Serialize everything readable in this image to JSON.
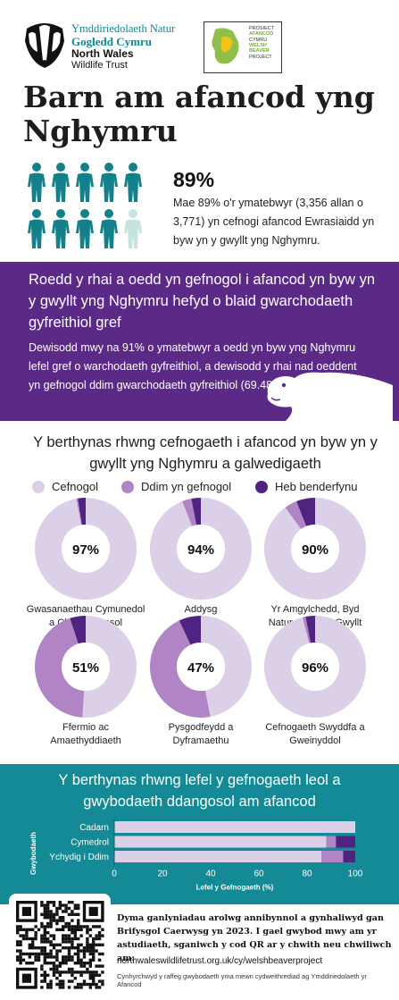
{
  "header": {
    "org_line1": "Ymddiriedolaeth Natur",
    "org_line2": "Gogledd Cymru",
    "org_line3": "North Wales",
    "org_line4": "Wildlife Trust",
    "project_line1": "PROSIECT",
    "project_line2": "AFANCOD",
    "project_line3": "CYMRU",
    "project_line4": "WELSH",
    "project_line5": "BEAVER",
    "project_line6": "PROJECT"
  },
  "title": "Barn am afancod yng Nghymru",
  "support": {
    "percent_label": "89%",
    "description": "Mae 89% o'r ymatebwyr (3,356 allan o 3,771) yn cefnogi afancod Ewrasiaidd yn byw yn y gwyllt yng Nghymru.",
    "icons_total": 10,
    "icons_filled": 9,
    "colors": {
      "filled": "#13808a",
      "faded": "#c5e3df"
    }
  },
  "purple_section": {
    "heading": "Roedd y rhai a oedd yn gefnogol i afancod yn byw yn y gwyllt yng Nghymru hefyd o blaid gwarchodaeth gyfreithiol gref",
    "body": "Dewisodd mwy na 91% o ymatebwyr a oedd yn byw yng Nghymru lefel gref o warchodaeth gyfreithiol, a dewisodd y rhai nad oeddent yn gefnogol ddim gwarchodaeth gyfreithiol (69.48%).",
    "bg_color": "#5a2a86"
  },
  "occupation_section": {
    "heading": "Y berthynas rhwng cefnogaeth i afancod yn byw yn y gwyllt yng Nghymru a galwedigaeth",
    "legend": [
      {
        "label": "Cefnogol",
        "color": "#dcd0e8"
      },
      {
        "label": "Ddim yn gefnogol",
        "color": "#b184c6"
      },
      {
        "label": "Heb benderfynu",
        "color": "#4f2380"
      }
    ]
  },
  "bar_section": {
    "heading": "Y berthynas rhwng lefel y gefnogaeth leol a gwybodaeth ddangosol am afancod",
    "bg_color": "#138a95"
  },
  "footer": {
    "main_text": "Dyma ganlyniadau arolwg annibynnol a gynhaliwyd gan Brifysgol Caerwysg yn 2023. I gael gwybod mwy am yr astudiaeth, sganiwch y cod QR ar y chwith neu chwiliwch am:",
    "url": "northwaleswildlifetrust.org.uk/cy/welshbeaverproject",
    "small_text": "Cynhyrchwyd y raffeg gwybodaeth yma mewn cydweithrediad ag Ymddiriedolaeth yr Afancod"
  },
  "chart_data": [
    {
      "type": "pie",
      "subtype": "donut-grid",
      "series_labels": [
        "Cefnogol",
        "Ddim yn gefnogol",
        "Heb benderfynu"
      ],
      "colors": [
        "#dcd0e8",
        "#b184c6",
        "#4f2380"
      ],
      "items": [
        {
          "label_line1": "Gwasanaethau Cymunedol",
          "label_line2": "a Chymdeithasol",
          "center": "97%",
          "values": [
            97,
            0.5,
            2.5
          ]
        },
        {
          "label_line1": "Addysg",
          "label_line2": "",
          "center": "94%",
          "values": [
            94,
            3,
            3
          ]
        },
        {
          "label_line1": "Yr Amgylchedd, Byd",
          "label_line2": "Natur a Bywyd Gwyllt",
          "center": "90%",
          "values": [
            90,
            4,
            6
          ]
        },
        {
          "label_line1": "Ffermio ac",
          "label_line2": "Amaethyddiaeth",
          "center": "51%",
          "values": [
            51,
            44,
            5
          ]
        },
        {
          "label_line1": "Pysgodfeydd a",
          "label_line2": "Dyframaethu",
          "center": "47%",
          "values": [
            47,
            46,
            7
          ]
        },
        {
          "label_line1": "Cefnogaeth Swyddfa a",
          "label_line2": "Gweinyddol",
          "center": "96%",
          "values": [
            96,
            1,
            3
          ]
        }
      ]
    },
    {
      "type": "bar",
      "orientation": "horizontal",
      "stacked": true,
      "categories": [
        "Cadarn",
        "Cymedrol",
        "Ychydig i Ddim"
      ],
      "series": [
        {
          "name": "Cefnogol",
          "values": [
            100,
            88,
            86
          ],
          "color": "#dcd0e8"
        },
        {
          "name": "Ddim yn gefnogol",
          "values": [
            0,
            4,
            9
          ],
          "color": "#b184c6"
        },
        {
          "name": "Heb benderfynu",
          "values": [
            0,
            8,
            5
          ],
          "color": "#4f2380"
        }
      ],
      "xlabel": "Lefel y Gefnogaeth (%)",
      "ylabel": "Gwybodaeth",
      "xticks": [
        "0",
        "20",
        "40",
        "60",
        "80",
        "100"
      ],
      "xlim": [
        0,
        100
      ]
    }
  ]
}
